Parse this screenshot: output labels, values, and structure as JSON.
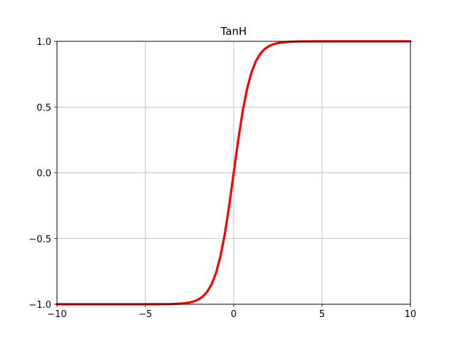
{
  "chart_data": {
    "type": "line",
    "title": "TanH",
    "xlabel": "",
    "ylabel": "",
    "xlim": [
      -10,
      10
    ],
    "ylim": [
      -1.0,
      1.0
    ],
    "grid": true,
    "x_ticks": [
      -10,
      -5,
      0,
      5,
      10
    ],
    "x_tick_labels": [
      "−10",
      "−5",
      "0",
      "5",
      "10"
    ],
    "y_ticks": [
      -1.0,
      -0.5,
      0.0,
      0.5,
      1.0
    ],
    "y_tick_labels": [
      "−1.0",
      "−0.5",
      "0.0",
      "0.5",
      "1.0"
    ],
    "series": [
      {
        "color": "#ff0000",
        "x": [
          -10,
          -8,
          -6,
          -5,
          -4,
          -3.5,
          -3,
          -2.75,
          -2.5,
          -2.25,
          -2,
          -1.75,
          -1.5,
          -1.25,
          -1,
          -0.75,
          -0.5,
          -0.25,
          0,
          0.25,
          0.5,
          0.75,
          1,
          1.25,
          1.5,
          1.75,
          2,
          2.25,
          2.5,
          2.75,
          3,
          3.5,
          4,
          5,
          6,
          8,
          10
        ],
        "y": [
          -1.0,
          -1.0,
          -1.0,
          -0.9999,
          -0.9993,
          -0.9982,
          -0.9951,
          -0.9919,
          -0.9866,
          -0.978,
          -0.964,
          -0.9414,
          -0.9051,
          -0.8483,
          -0.7616,
          -0.6351,
          -0.4621,
          -0.2449,
          0.0,
          0.2449,
          0.4621,
          0.6351,
          0.7616,
          0.8483,
          0.9051,
          0.9414,
          0.964,
          0.978,
          0.9866,
          0.9919,
          0.9951,
          0.9982,
          0.9993,
          0.9999,
          1.0,
          1.0,
          1.0
        ]
      }
    ]
  }
}
